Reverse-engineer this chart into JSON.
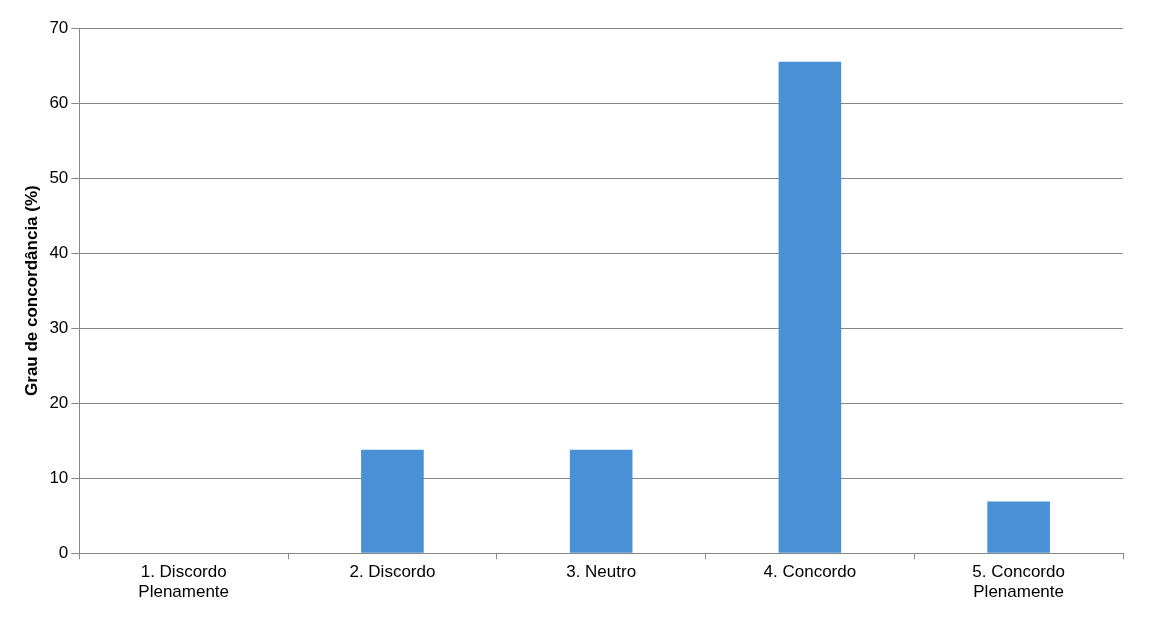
{
  "chart_data": {
    "type": "bar",
    "ylabel": "Grau de concordância (%)",
    "categories": [
      "1. Discordo Plenamente",
      "2. Discordo",
      "3. Neutro",
      "4. Concordo",
      "5. Concordo Plenamente"
    ],
    "values": [
      0,
      13.8,
      13.8,
      65.5,
      6.9
    ],
    "color": "#4a90d4",
    "ylim": [
      0,
      70
    ],
    "yticks": [
      0,
      10,
      20,
      30,
      40,
      50,
      60,
      70
    ],
    "grid": "y",
    "legend": false
  }
}
